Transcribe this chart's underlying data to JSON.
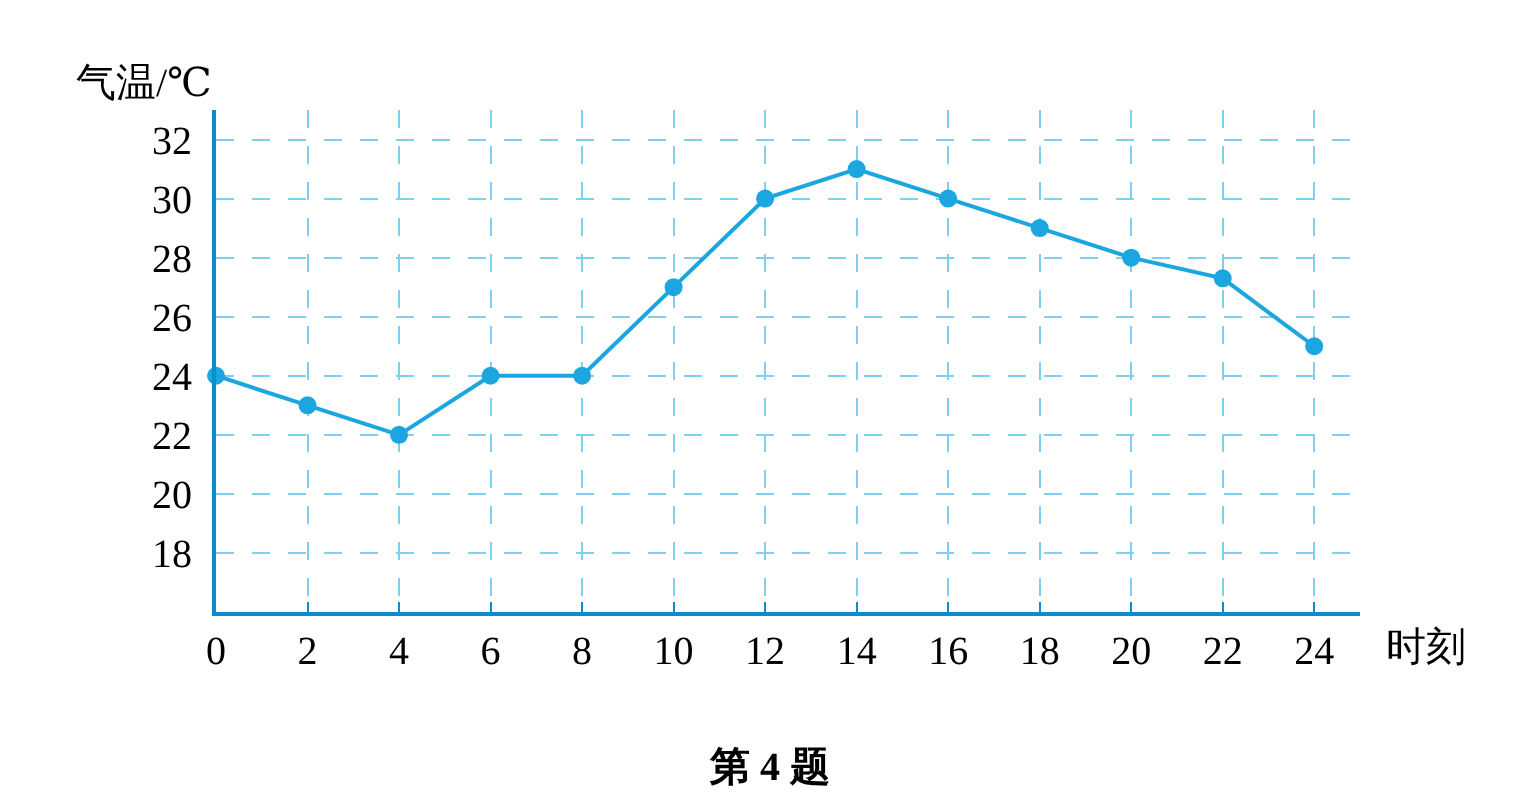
{
  "chart_data": {
    "type": "line",
    "title": "第 4 题",
    "xlabel": "时刻",
    "ylabel": "气温/℃",
    "x": [
      0,
      2,
      4,
      6,
      8,
      10,
      12,
      14,
      16,
      18,
      20,
      22,
      24
    ],
    "series": [
      {
        "color": "#1ba6e0",
        "values": [
          24,
          23,
          22,
          24,
          24,
          27,
          30,
          31,
          30,
          29,
          28,
          27.3,
          25
        ]
      }
    ],
    "xlim": [
      0,
      25
    ],
    "xticks": [
      0,
      2,
      4,
      6,
      8,
      10,
      12,
      14,
      16,
      18,
      20,
      22,
      24
    ],
    "ylim": [
      16,
      33
    ],
    "yticks": [
      18,
      20,
      22,
      24,
      26,
      28,
      30,
      32
    ],
    "grid": true,
    "marker": "circle",
    "line_style": "solid"
  }
}
